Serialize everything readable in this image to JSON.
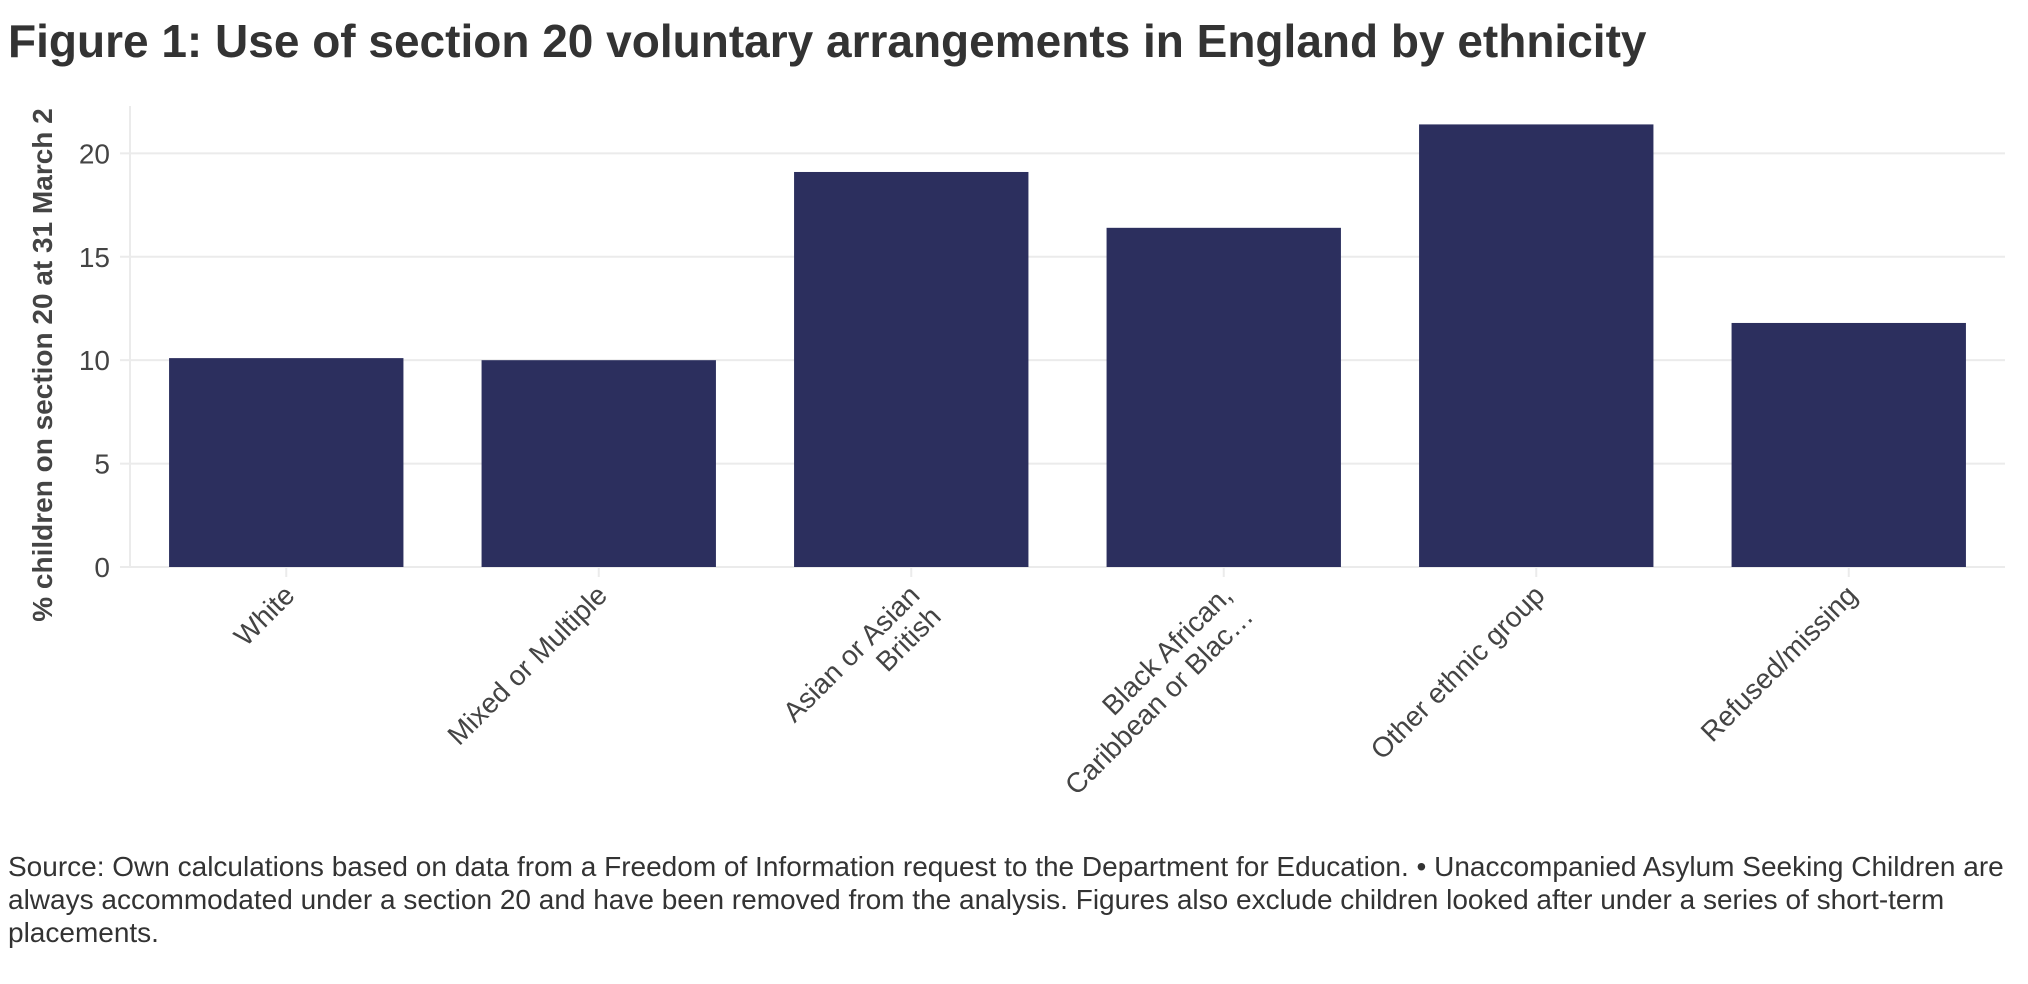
{
  "chart_data": {
    "type": "bar",
    "title": "Figure 1: Use of section 20 voluntary arrangements in England by ethnicity",
    "categories": [
      "White",
      "Mixed or Multiple",
      "Asian or Asian British",
      "Black African, Caribbean or Blac…",
      "Other ethnic group",
      "Refused/missing"
    ],
    "category_lines": [
      [
        "White"
      ],
      [
        "Mixed or Multiple"
      ],
      [
        "Asian or Asian",
        "British"
      ],
      [
        "Black African,",
        "Caribbean or Blac…"
      ],
      [
        "Other ethnic group"
      ],
      [
        "Refused/missing"
      ]
    ],
    "values": [
      10.1,
      10.0,
      19.1,
      16.4,
      21.4,
      11.8
    ],
    "xlabel": "",
    "ylabel": "% children on section 20 at 31 March 2",
    "ylim": [
      0,
      22
    ],
    "yticks": [
      0,
      5,
      10,
      15,
      20
    ],
    "grid": true,
    "bar_color": "#2c2f5e"
  },
  "source_note": "Source: Own calculations based on data from a Freedom of Information request to the Department for Education. • Unaccompanied Asylum Seeking Children are always accommodated under a section 20 and have been removed from the analysis. Figures also exclude children looked after under a series of short-term placements."
}
